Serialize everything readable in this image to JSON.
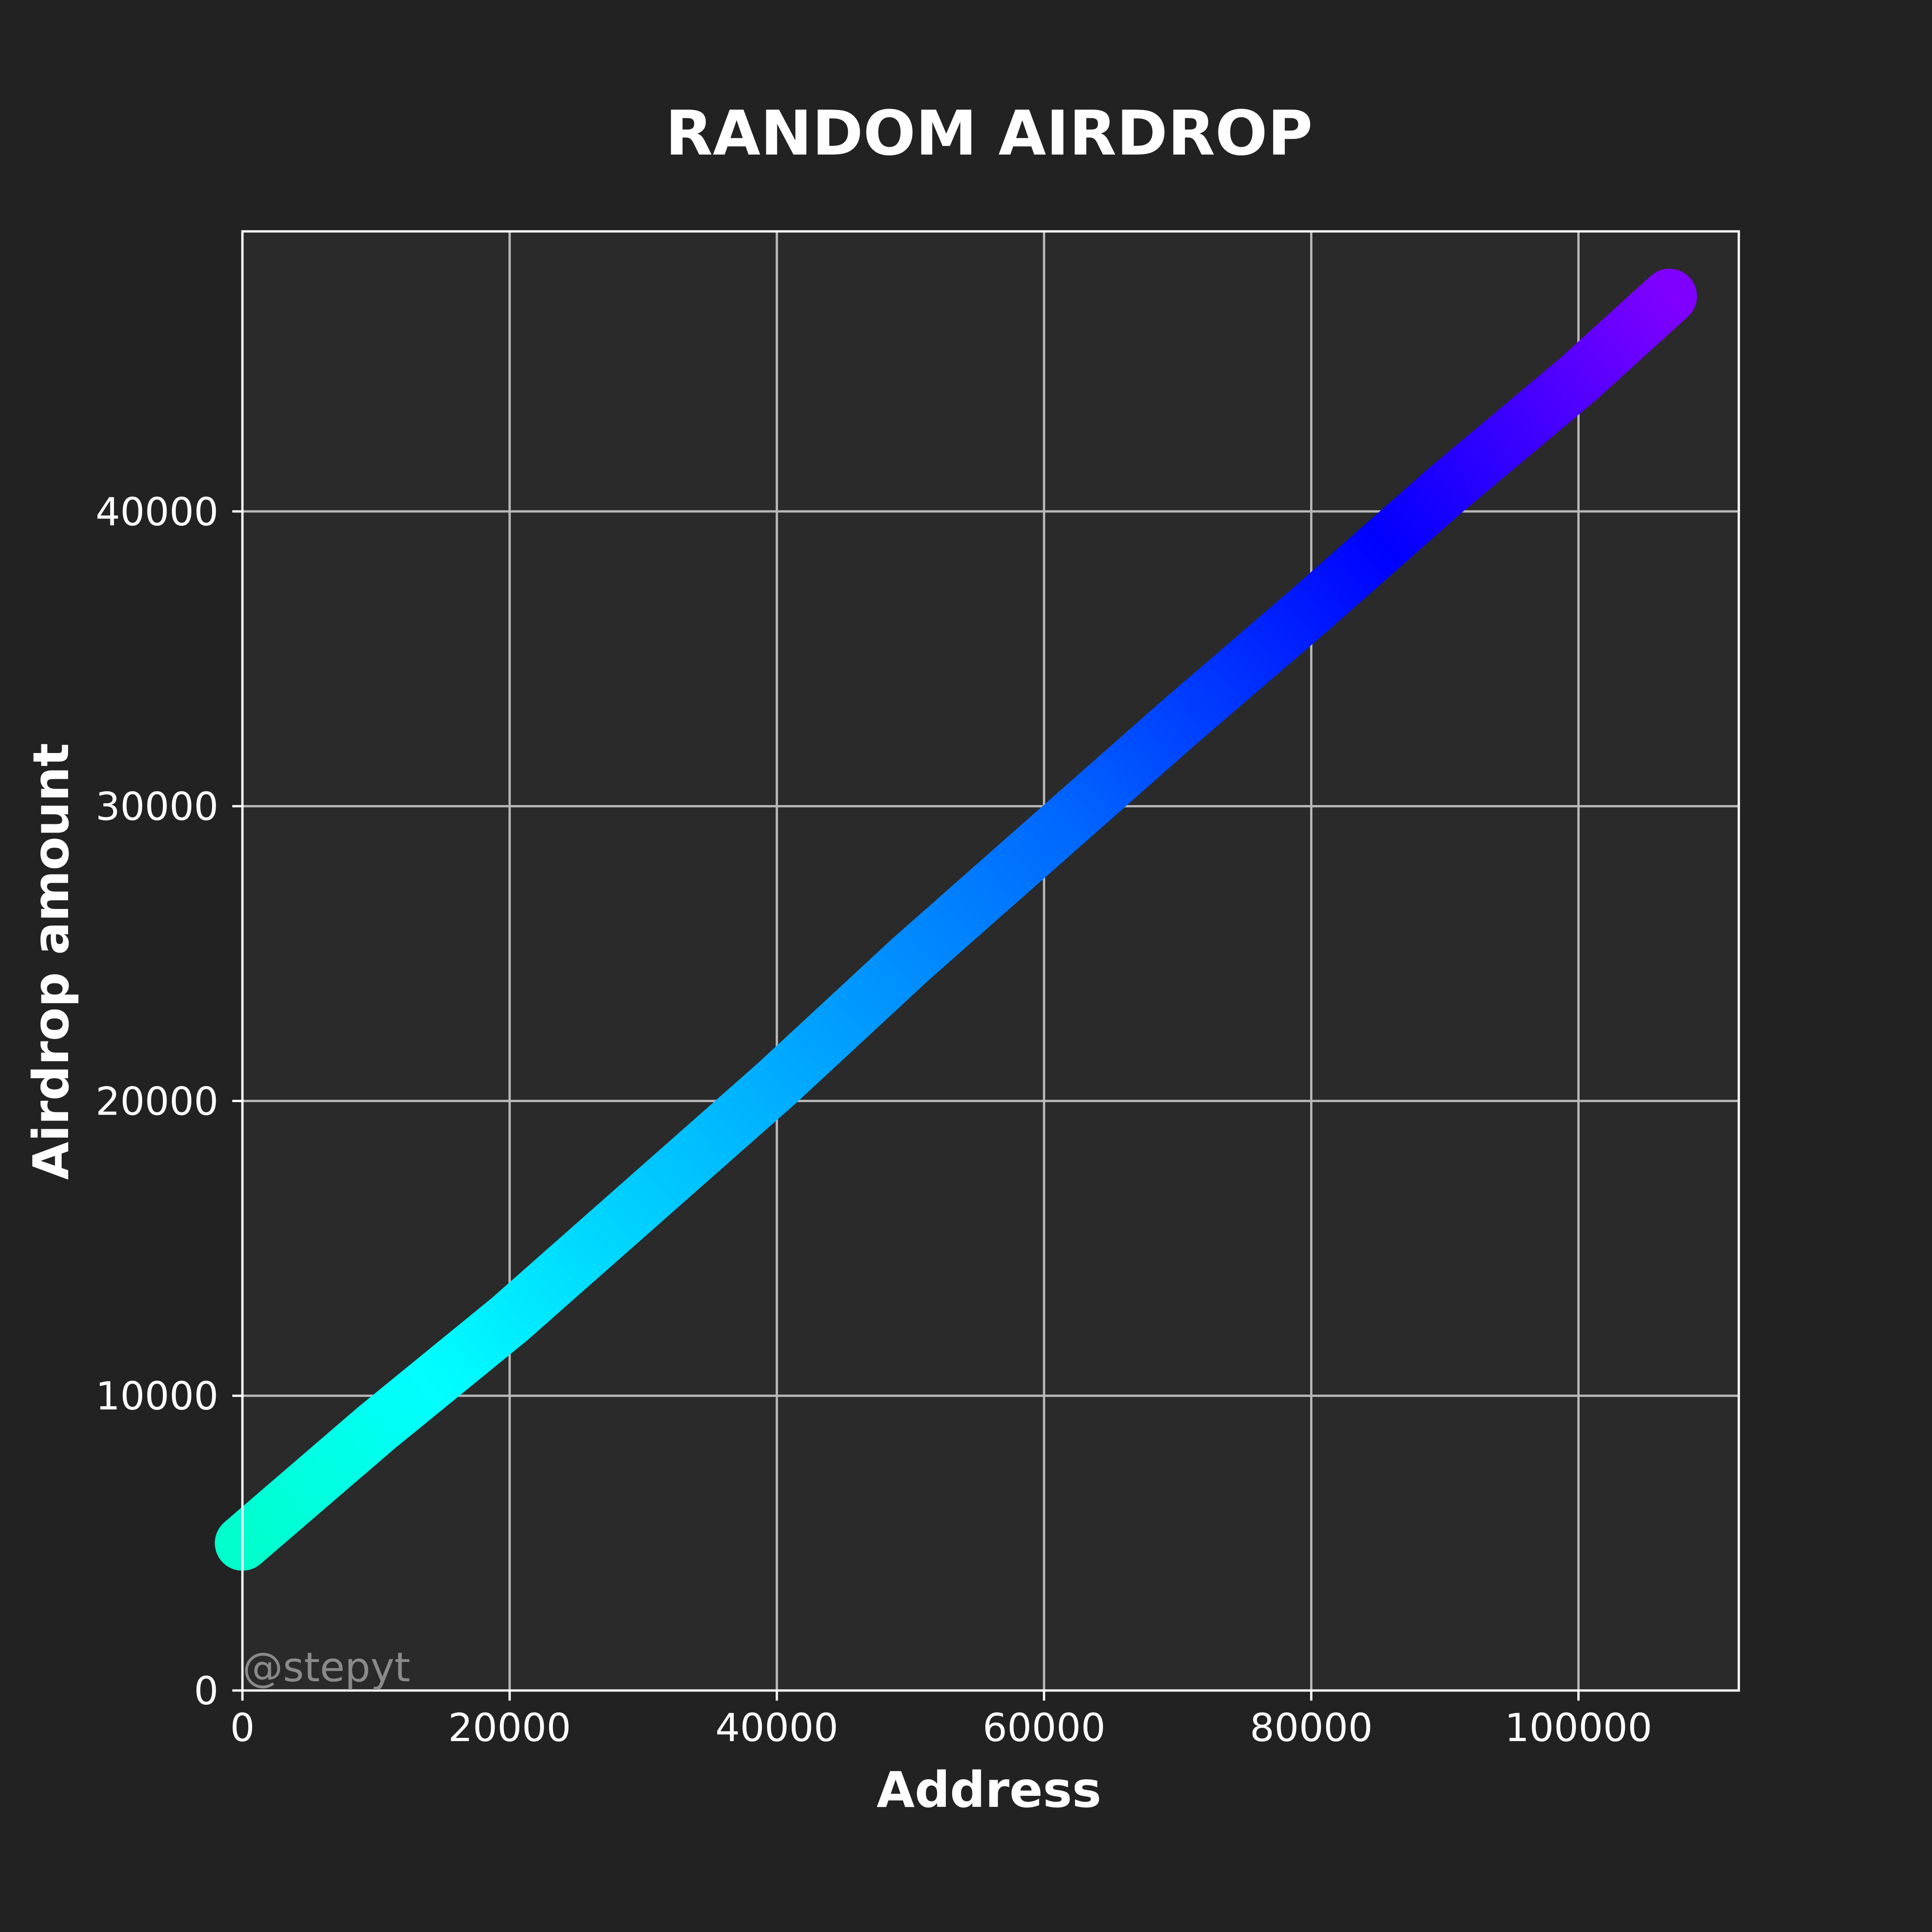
{
  "colors": {
    "figure_background": "#222222",
    "plot_background": "#2a2a2a",
    "grid": "#b8b8b8",
    "text": "#ffffff",
    "watermark": "#8a8a8a",
    "colormap": [
      "#00ffcc",
      "#00ffff",
      "#00aaff",
      "#0066ff",
      "#0000ff",
      "#7f00ff"
    ]
  },
  "watermark": "@stepyt",
  "chart_data": {
    "type": "line",
    "title": "RANDOM AIRDROP",
    "xlabel": "Address",
    "ylabel": "Airdrop amount",
    "xlim": [
      0,
      112000
    ],
    "ylim": [
      0,
      49500
    ],
    "xticks": [
      0,
      20000,
      40000,
      60000,
      80000,
      100000
    ],
    "yticks": [
      0,
      10000,
      20000,
      30000,
      40000
    ],
    "grid": true,
    "series": [
      {
        "x": [
          0,
          10000,
          20000,
          30000,
          40000,
          50000,
          60000,
          70000,
          80000,
          90000,
          100000,
          106800
        ],
        "y": [
          5000,
          8900,
          12600,
          16600,
          20600,
          24800,
          28800,
          32800,
          36700,
          40700,
          44500,
          47300
        ]
      }
    ]
  }
}
